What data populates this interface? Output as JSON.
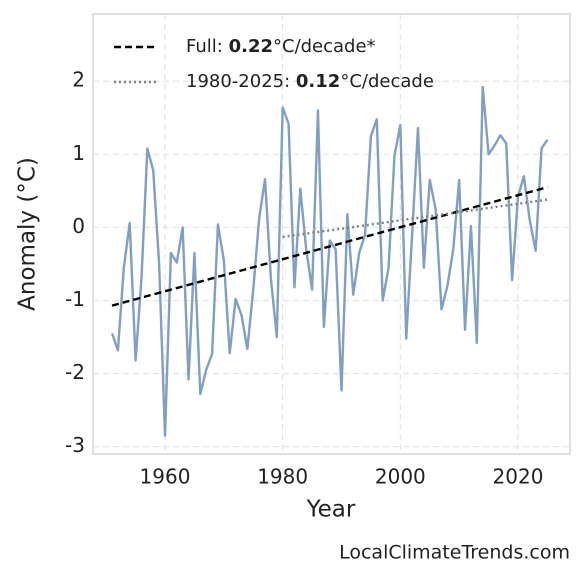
{
  "chart_data": {
    "type": "line",
    "xlabel": "Year",
    "ylabel": "Anomaly (°C)",
    "watermark": "LocalClimateTrends.com",
    "xlim": [
      1947.76,
      2028.84
    ],
    "ylim": [
      -3.1,
      2.92
    ],
    "xticks": [
      1960,
      1980,
      2000,
      2020
    ],
    "yticks": [
      -3,
      -2,
      -1,
      0,
      1,
      2
    ],
    "grid": true,
    "legend": "upper left",
    "x": [
      1951,
      1952,
      1953,
      1954,
      1955,
      1956,
      1957,
      1958,
      1959,
      1960,
      1961,
      1962,
      1963,
      1964,
      1965,
      1966,
      1967,
      1968,
      1969,
      1970,
      1971,
      1972,
      1973,
      1974,
      1975,
      1976,
      1977,
      1978,
      1979,
      1980,
      1981,
      1982,
      1983,
      1984,
      1985,
      1986,
      1987,
      1988,
      1989,
      1990,
      1991,
      1992,
      1993,
      1994,
      1995,
      1996,
      1997,
      1998,
      1999,
      2000,
      2001,
      2002,
      2003,
      2004,
      2005,
      2006,
      2007,
      2008,
      2009,
      2010,
      2011,
      2012,
      2013,
      2014,
      2015,
      2016,
      2017,
      2018,
      2019,
      2020,
      2021,
      2022,
      2023,
      2024,
      2025
    ],
    "values": [
      -1.45,
      -1.68,
      -0.55,
      0.06,
      -1.82,
      -0.7,
      1.08,
      0.78,
      -0.5,
      -2.85,
      -0.35,
      -0.48,
      0.0,
      -2.08,
      -0.35,
      -2.28,
      -1.95,
      -1.73,
      0.04,
      -0.45,
      -1.72,
      -0.98,
      -1.2,
      -1.66,
      -0.85,
      0.12,
      0.66,
      -0.7,
      -1.5,
      1.64,
      1.42,
      -0.82,
      0.53,
      -0.3,
      -0.85,
      1.6,
      -1.36,
      -0.18,
      -0.3,
      -2.23,
      0.18,
      -0.92,
      -0.35,
      -0.1,
      1.25,
      1.48,
      -1.0,
      -0.55,
      0.98,
      1.4,
      -1.52,
      -0.1,
      1.36,
      -0.55,
      0.65,
      0.25,
      -1.12,
      -0.8,
      -0.3,
      0.65,
      -1.4,
      0.02,
      -1.58,
      1.92,
      1.0,
      1.12,
      1.26,
      1.15,
      -0.72,
      0.42,
      0.7,
      0.1,
      -0.32,
      1.08,
      1.2
    ],
    "color": "#7f9fc4",
    "trends": [
      {
        "name_prefix": "Full: ",
        "trend": 0.22,
        "unit": "°C/decade*",
        "color": "#000000",
        "dash": "dashed",
        "x": [
          1951,
          2025
        ],
        "values": [
          -1.07,
          0.55
        ]
      },
      {
        "name_prefix": "1980-2025: ",
        "trend": 0.12,
        "unit": "°C/decade",
        "color": "#808080",
        "dash": "dotted",
        "x": [
          1980,
          2025
        ],
        "values": [
          -0.13,
          0.38
        ]
      }
    ]
  }
}
